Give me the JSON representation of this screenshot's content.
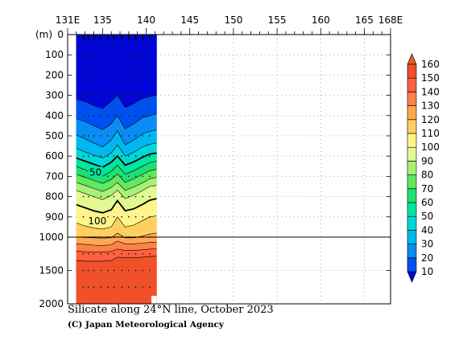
{
  "chart_data": {
    "type": "contour-section",
    "title": "Silicate along 24°N line, October 2023",
    "credit": "(C) Japan Meteorological Agency",
    "x_axis": {
      "range": [
        131,
        168
      ],
      "ticks": [
        {
          "value": 131,
          "label": "131E"
        },
        {
          "value": 135,
          "label": "135"
        },
        {
          "value": 140,
          "label": "140"
        },
        {
          "value": 145,
          "label": "145"
        },
        {
          "value": 150,
          "label": "150"
        },
        {
          "value": 155,
          "label": "155"
        },
        {
          "value": 160,
          "label": "160"
        },
        {
          "value": 165,
          "label": "165"
        },
        {
          "value": 168,
          "label": "168E"
        }
      ]
    },
    "y_axis": {
      "unit_label": "(m)",
      "upper_range": [
        0,
        1000
      ],
      "lower_range": [
        1000,
        2000
      ],
      "upper_ticks": [
        0,
        100,
        200,
        300,
        400,
        500,
        600,
        700,
        800,
        900,
        1000
      ],
      "lower_ticks": [
        1500,
        2000
      ],
      "tick_labels": [
        "0",
        "100",
        "200",
        "300",
        "400",
        "500",
        "600",
        "700",
        "800",
        "900",
        "1000",
        "1500",
        "2000"
      ]
    },
    "data_extent_lon": [
      132.0,
      141.2
    ],
    "station_lons": [
      132.8,
      133.4,
      134.0,
      134.8,
      135.6,
      136.3,
      137.2,
      138.0,
      138.8,
      139.6,
      140.4
    ],
    "depth_levels": [
      0,
      100,
      200,
      300,
      400,
      500,
      600,
      700,
      800,
      900,
      1000,
      1250,
      1500,
      1750,
      2000
    ],
    "contour_labels": [
      {
        "text": "50",
        "lon": 134.2,
        "depth": 680
      },
      {
        "text": "100",
        "lon": 134.4,
        "depth": 920
      }
    ],
    "colorbar": {
      "levels": [
        10,
        20,
        30,
        40,
        50,
        60,
        70,
        80,
        90,
        100,
        110,
        120,
        130,
        140,
        150,
        160
      ],
      "labels": [
        "160",
        "150",
        "140",
        "130",
        "120",
        "110",
        "100",
        "90",
        "80",
        "70",
        "60",
        "50",
        "40",
        "30",
        "20",
        "10"
      ],
      "colors": [
        "#0005d6",
        "#0050f0",
        "#0a8cf5",
        "#00b8f0",
        "#00d8d8",
        "#00e6a0",
        "#20e070",
        "#60e860",
        "#a8f078",
        "#e2f890",
        "#fff48a",
        "#ffd060",
        "#ffa850",
        "#ff8048",
        "#ff6040",
        "#f0502a",
        "#e06020"
      ]
    },
    "grid": "dotted",
    "section_columns": [
      {
        "lon": 132.0,
        "contours": [
          320,
          415,
          495,
          560,
          610,
          650,
          690,
          730,
          770,
          840,
          930,
          1000,
          1100,
          1210,
          1350
        ]
      },
      {
        "lon": 133.0,
        "contours": [
          330,
          430,
          515,
          580,
          625,
          668,
          705,
          745,
          785,
          855,
          945,
          1005,
          1110,
          1220,
          1360
        ]
      },
      {
        "lon": 134.0,
        "contours": [
          350,
          450,
          535,
          595,
          640,
          685,
          720,
          760,
          800,
          870,
          955,
          1010,
          1120,
          1225,
          1360
        ]
      },
      {
        "lon": 135.0,
        "contours": [
          365,
          470,
          555,
          610,
          655,
          700,
          735,
          775,
          815,
          880,
          960,
          1015,
          1125,
          1225,
          1360
        ]
      },
      {
        "lon": 136.0,
        "contours": [
          330,
          440,
          520,
          585,
          630,
          675,
          715,
          755,
          795,
          865,
          950,
          1010,
          1115,
          1215,
          1350
        ]
      },
      {
        "lon": 136.7,
        "contours": [
          300,
          400,
          475,
          545,
          600,
          645,
          688,
          730,
          768,
          820,
          900,
          980,
          1060,
          1180,
          1300
        ]
      },
      {
        "lon": 137.6,
        "contours": [
          360,
          465,
          545,
          600,
          645,
          690,
          730,
          770,
          810,
          870,
          950,
          1010,
          1100,
          1200,
          1310
        ]
      },
      {
        "lon": 138.6,
        "contours": [
          340,
          440,
          520,
          580,
          628,
          672,
          712,
          752,
          792,
          860,
          940,
          1010,
          1100,
          1200,
          1310
        ]
      },
      {
        "lon": 139.6,
        "contours": [
          315,
          410,
          490,
          555,
          605,
          650,
          690,
          732,
          770,
          838,
          918,
          995,
          1090,
          1190,
          1300
        ]
      },
      {
        "lon": 140.4,
        "contours": [
          305,
          400,
          478,
          542,
          590,
          632,
          672,
          712,
          750,
          818,
          900,
          985,
          1080,
          1180,
          1290
        ]
      },
      {
        "lon": 141.2,
        "contours": [
          300,
          390,
          470,
          535,
          585,
          625,
          665,
          705,
          745,
          810,
          895,
          980,
          1075,
          1175,
          1285
        ]
      }
    ]
  }
}
